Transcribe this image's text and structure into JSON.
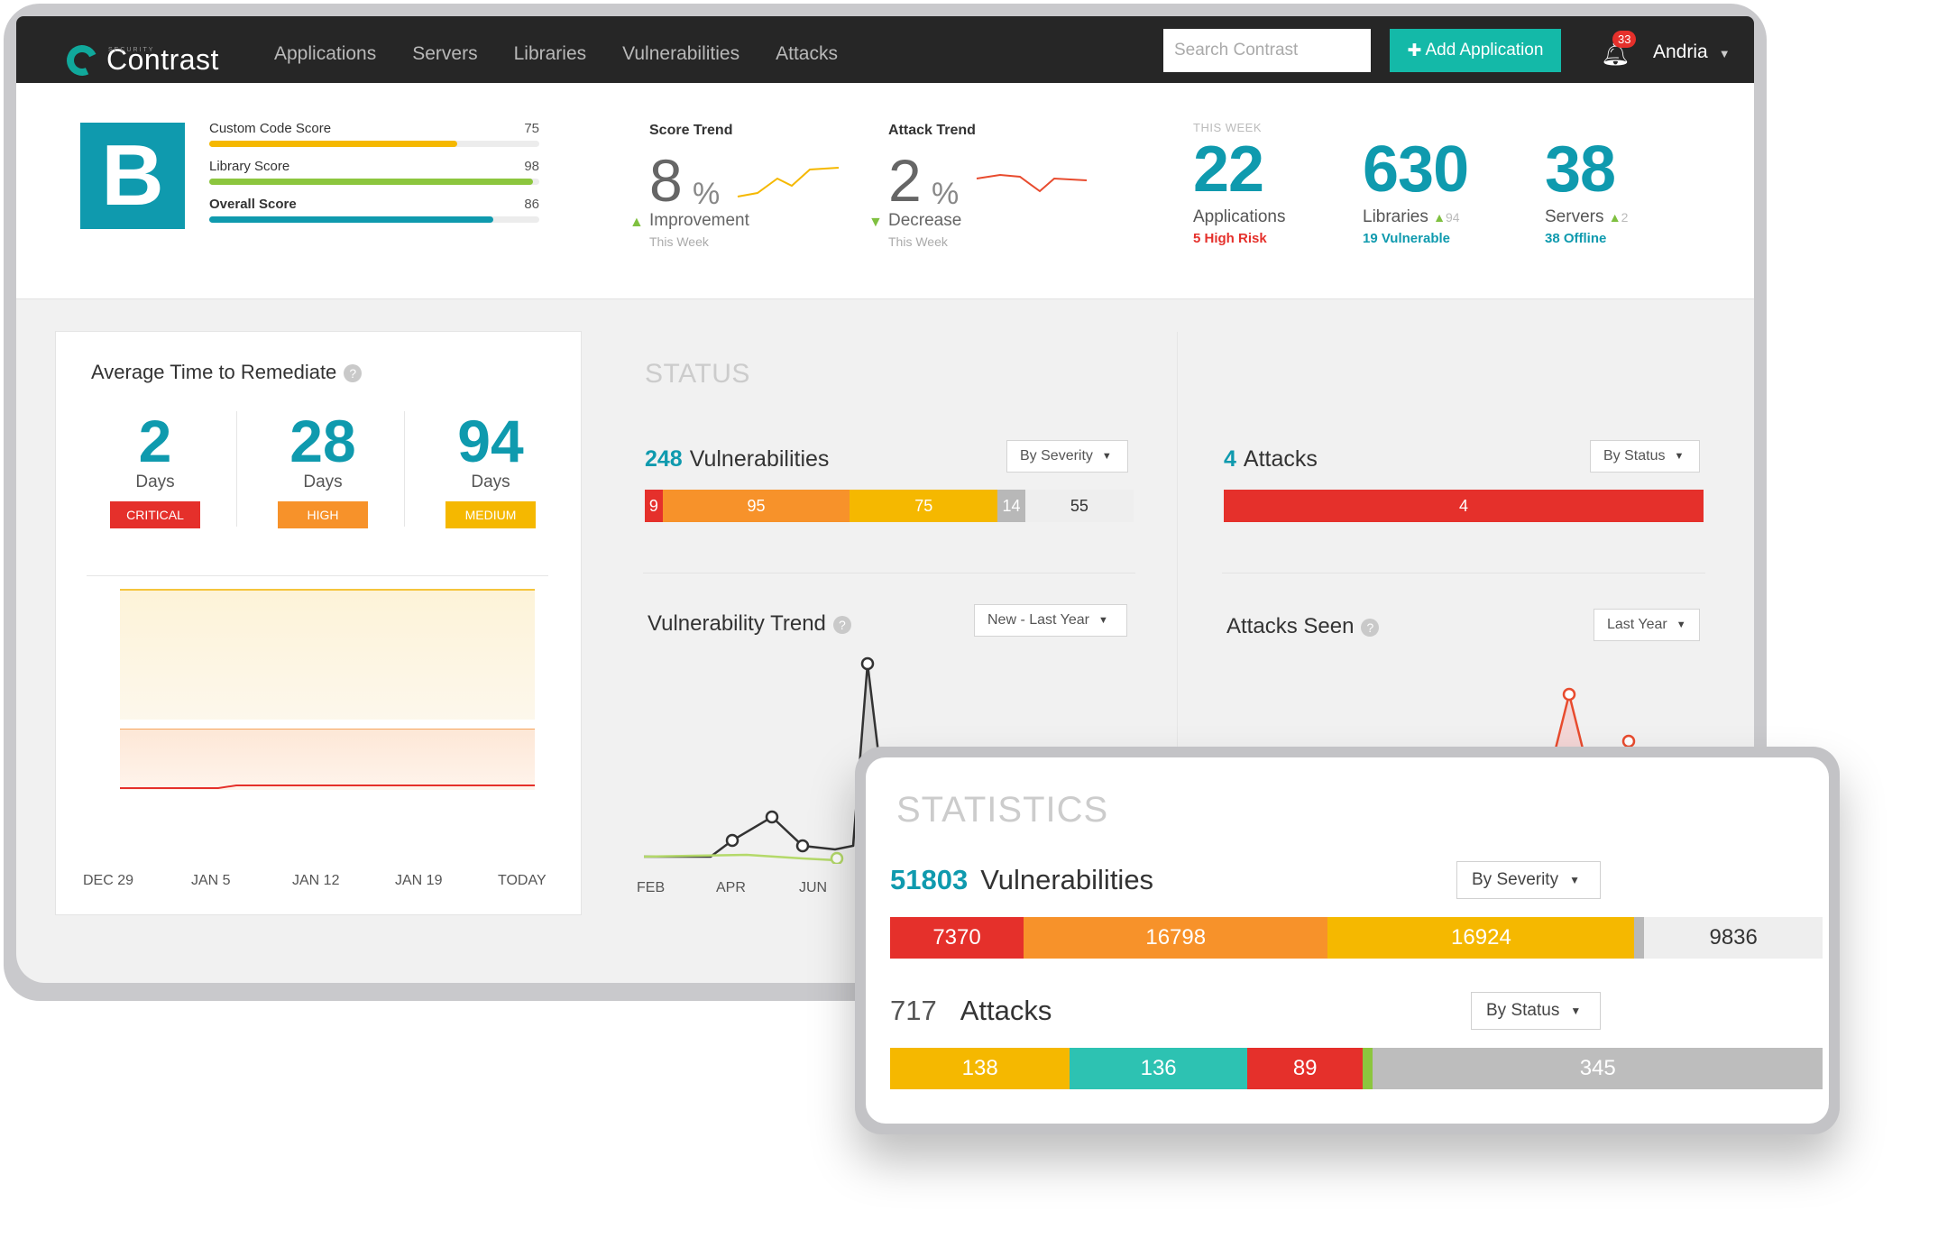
{
  "nav": {
    "brand": "Contrast",
    "brand_sub": "SECURITY",
    "links": [
      "Applications",
      "Servers",
      "Libraries",
      "Vulnerabilities",
      "Attacks"
    ],
    "search_placeholder": "Search Contrast",
    "add_button": "Add Application",
    "notification_count": "33",
    "user": "Andria"
  },
  "grade": "B",
  "scores": [
    {
      "label": "Custom Code Score",
      "value": "75",
      "fraction": 0.75,
      "color": "#f5b800"
    },
    {
      "label": "Library Score",
      "value": "98",
      "fraction": 0.98,
      "color": "#8cc63e"
    },
    {
      "label": "Overall Score",
      "value": "86",
      "fraction": 0.86,
      "color": "#0f9aae"
    }
  ],
  "score_trend": {
    "title": "Score Trend",
    "value": "8",
    "unit": "%",
    "label": "Improvement",
    "sub": "This Week",
    "color": "#f5b800"
  },
  "attack_trend": {
    "title": "Attack Trend",
    "value": "2",
    "unit": "%",
    "label": "Decrease",
    "sub": "This Week",
    "color": "#e84b2e"
  },
  "this_week": "THIS WEEK",
  "week_stats": [
    {
      "num": "22",
      "label": "Applications",
      "delta": "",
      "sub": "5 High Risk",
      "sub_color": "#e5302b"
    },
    {
      "num": "630",
      "label": "Libraries",
      "delta": "94",
      "sub": "19 Vulnerable",
      "sub_color": "#0f9aae"
    },
    {
      "num": "38",
      "label": "Servers",
      "delta": "2",
      "sub": "38 Offline",
      "sub_color": "#0f9aae"
    }
  ],
  "remediate": {
    "title": "Average Time to Remediate",
    "items": [
      {
        "num": "2",
        "unit": "Days",
        "badge": "CRITICAL",
        "color": "#e5302b"
      },
      {
        "num": "28",
        "unit": "Days",
        "badge": "HIGH",
        "color": "#f7922a"
      },
      {
        "num": "94",
        "unit": "Days",
        "badge": "MEDIUM",
        "color": "#f5b800"
      }
    ],
    "x_labels": [
      "DEC 29",
      "JAN 5",
      "JAN 12",
      "JAN 19",
      "TODAY"
    ]
  },
  "status": {
    "title": "STATUS",
    "vulns": {
      "count": "248",
      "label": "Vulnerabilities",
      "dropdown": "By Severity",
      "segments": [
        {
          "value": "9",
          "color": "#e5302b"
        },
        {
          "value": "95",
          "color": "#f7922a"
        },
        {
          "value": "75",
          "color": "#f5b800"
        },
        {
          "value": "14",
          "color": "#b8b8b8"
        },
        {
          "value": "55",
          "color": "#eeeeee"
        }
      ]
    },
    "attacks": {
      "count": "4",
      "label": "Attacks",
      "dropdown": "By Status",
      "segments": [
        {
          "value": "4",
          "color": "#e5302b"
        }
      ]
    },
    "vuln_trend": {
      "title": "Vulnerability Trend",
      "dropdown": "New - Last Year",
      "x_labels": [
        "FEB",
        "APR",
        "JUN"
      ]
    },
    "attacks_seen": {
      "title": "Attacks Seen",
      "dropdown": "Last Year"
    }
  },
  "statistics": {
    "title": "STATISTICS",
    "vulns": {
      "count": "51803",
      "label": "Vulnerabilities",
      "dropdown": "By Severity",
      "segments": [
        {
          "value": "7370",
          "color": "#e5302b"
        },
        {
          "value": "16798",
          "color": "#f7922a"
        },
        {
          "value": "16924",
          "color": "#f5b800"
        },
        {
          "value": "",
          "color": "#b8b8b8"
        },
        {
          "value": "9836",
          "color": "#eeeeee"
        }
      ]
    },
    "attacks": {
      "count": "717",
      "label": "Attacks",
      "dropdown": "By Status",
      "segments": [
        {
          "value": "138",
          "color": "#f5b800"
        },
        {
          "value": "136",
          "color": "#2dc2b2"
        },
        {
          "value": "89",
          "color": "#e5302b"
        },
        {
          "value": "",
          "color": "#8cc63e"
        },
        {
          "value": "345",
          "color": "#bdbdbd"
        }
      ]
    }
  }
}
